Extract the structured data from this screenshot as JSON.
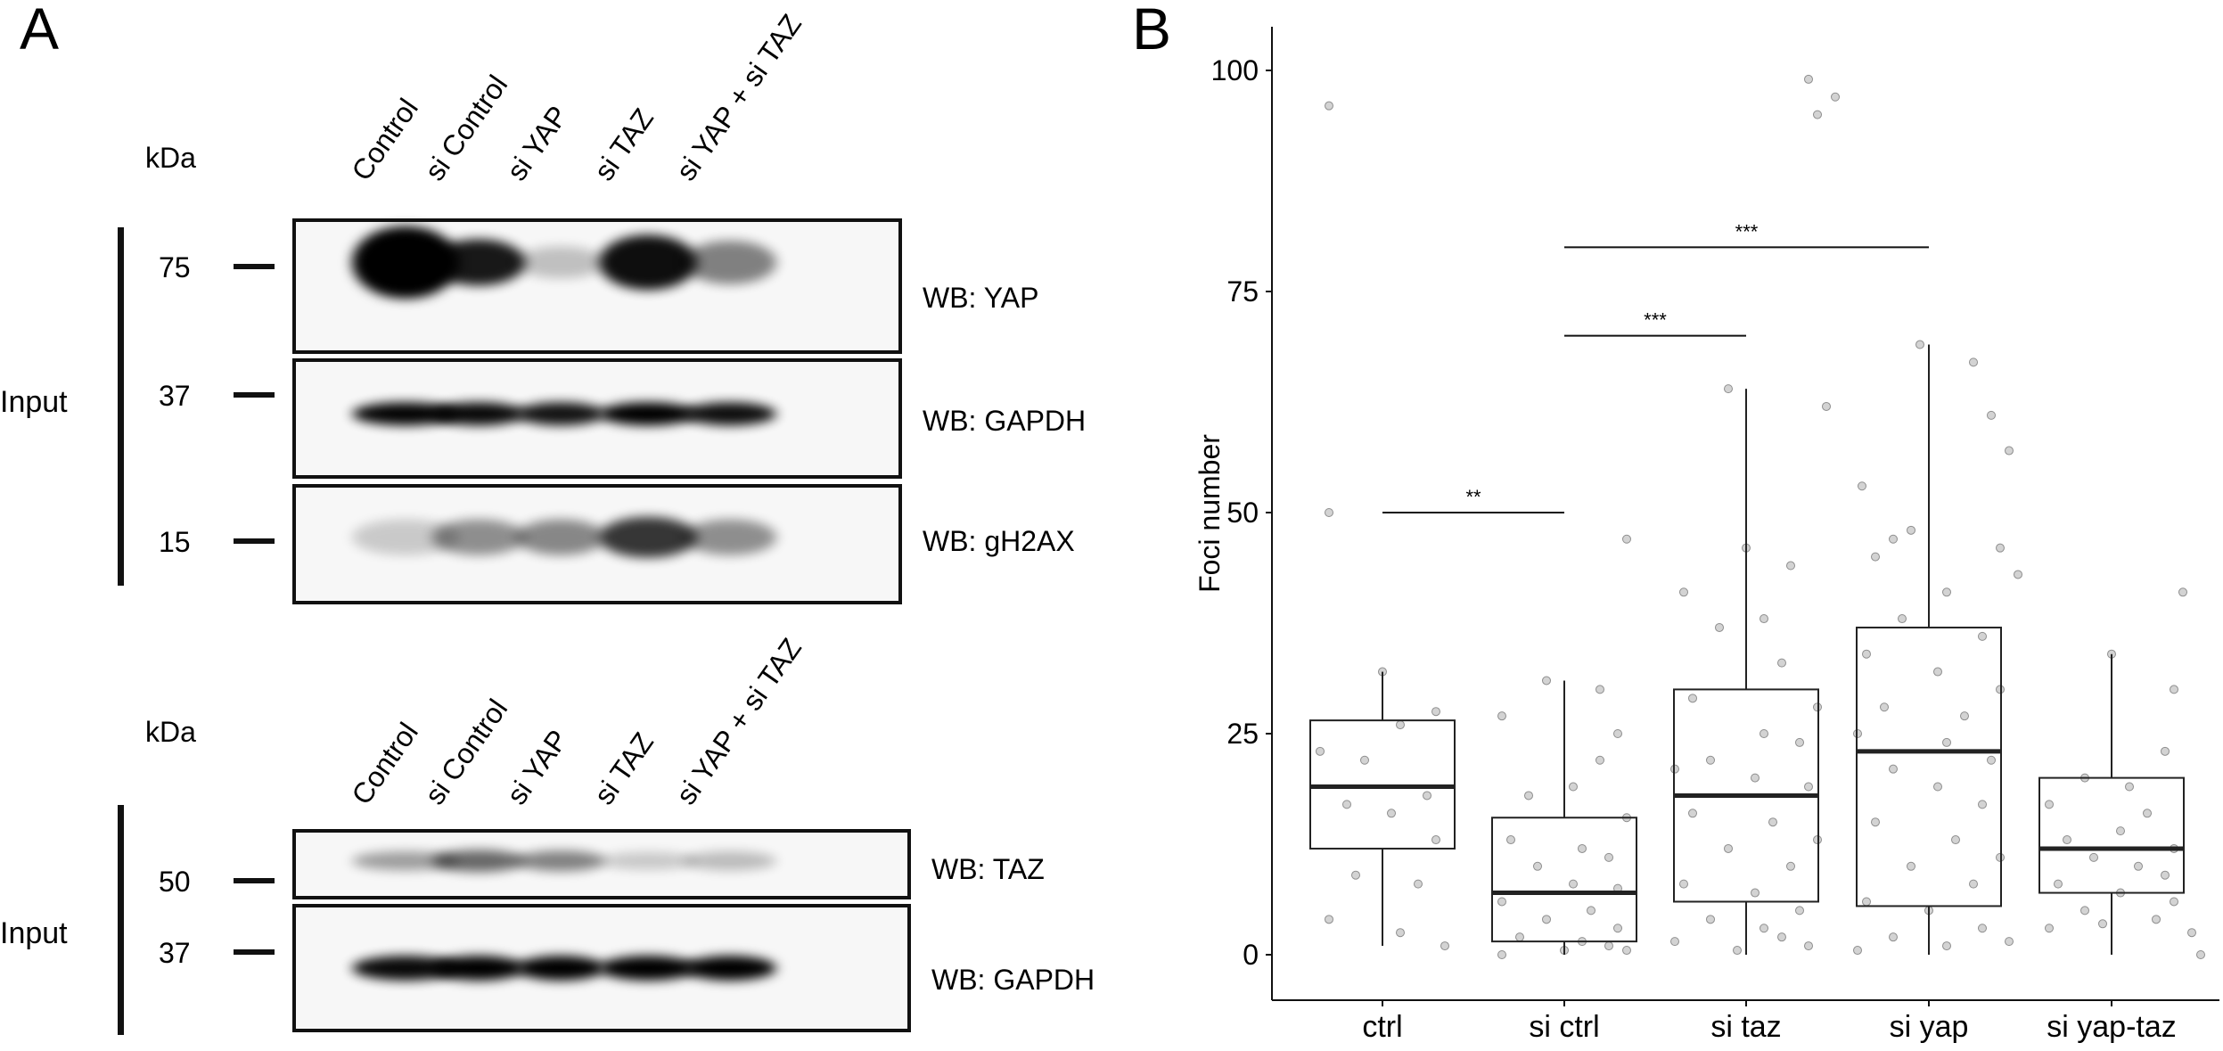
{
  "panel_a": {
    "label": "A",
    "kda_label": "kDa",
    "lanes": [
      "Control",
      "si Control",
      "si YAP",
      "si TAZ",
      "si YAP + si TAZ"
    ],
    "top_group": {
      "side_label": "Input",
      "blots": [
        {
          "wb_label": "WB: YAP",
          "marker": "75",
          "band_intensity": [
            0.97,
            0.78,
            0.1,
            0.82,
            0.36
          ],
          "band_spread": [
            0.5,
            0.32,
            0.22,
            0.38,
            0.3
          ]
        },
        {
          "wb_label": "WB: GAPDH",
          "marker": "37",
          "band_intensity": [
            0.86,
            0.84,
            0.8,
            0.88,
            0.82
          ],
          "band_spread": [
            0.18,
            0.18,
            0.18,
            0.18,
            0.18
          ]
        },
        {
          "wb_label": "WB: gH2AX",
          "marker": "15",
          "band_intensity": [
            0.06,
            0.3,
            0.33,
            0.66,
            0.3
          ],
          "band_spread": [
            0.28,
            0.28,
            0.28,
            0.32,
            0.28
          ]
        }
      ]
    },
    "bottom_group": {
      "side_label": "Input",
      "blots": [
        {
          "wb_label": "WB: TAZ",
          "marker": "50",
          "band_intensity": [
            0.24,
            0.46,
            0.36,
            0.07,
            0.12
          ],
          "band_spread": [
            0.26,
            0.3,
            0.28,
            0.24,
            0.26
          ]
        },
        {
          "wb_label": "WB: GAPDH",
          "marker": "37",
          "band_intensity": [
            0.84,
            0.88,
            0.92,
            0.9,
            0.92
          ],
          "band_spread": [
            0.18,
            0.18,
            0.18,
            0.18,
            0.18
          ]
        }
      ]
    }
  },
  "chart_data": {
    "panel_label": "B",
    "type": "boxplot",
    "title": "",
    "xlabel": "",
    "ylabel": "Foci number",
    "ylim": [
      -5,
      105
    ],
    "yticks": [
      0,
      25,
      50,
      75,
      100
    ],
    "grid": false,
    "categories": [
      "ctrl",
      "si ctrl",
      "si taz",
      "si yap",
      "si yap-taz"
    ],
    "boxes": [
      {
        "category": "ctrl",
        "whisker_low": 1,
        "q1": 12,
        "median": 19,
        "q3": 26.5,
        "whisker_high": 32
      },
      {
        "category": "si ctrl",
        "whisker_low": 0,
        "q1": 1.5,
        "median": 7,
        "q3": 15.5,
        "whisker_high": 31
      },
      {
        "category": "si taz",
        "whisker_low": 0,
        "q1": 6,
        "median": 18,
        "q3": 30,
        "whisker_high": 64
      },
      {
        "category": "si yap",
        "whisker_low": 0,
        "q1": 5.5,
        "median": 23,
        "q3": 37,
        "whisker_high": 69
      },
      {
        "category": "si yap-taz",
        "whisker_low": 0,
        "q1": 7,
        "median": 12,
        "q3": 20,
        "whisker_high": 34
      }
    ],
    "points": [
      [
        [
          -0.3,
          96
        ],
        [
          -0.3,
          50
        ],
        [
          0.0,
          32
        ],
        [
          -0.35,
          23
        ],
        [
          0.1,
          26
        ],
        [
          0.3,
          27.5
        ],
        [
          -0.1,
          22
        ],
        [
          0.25,
          18
        ],
        [
          -0.2,
          17
        ],
        [
          0.05,
          16
        ],
        [
          0.3,
          13
        ],
        [
          -0.15,
          9
        ],
        [
          0.2,
          8
        ],
        [
          -0.3,
          4
        ],
        [
          0.1,
          2.5
        ],
        [
          0.35,
          1
        ]
      ],
      [
        [
          -0.1,
          31
        ],
        [
          0.2,
          30
        ],
        [
          0.35,
          47
        ],
        [
          -0.35,
          27
        ],
        [
          0.2,
          22
        ],
        [
          0.3,
          25
        ],
        [
          -0.2,
          18
        ],
        [
          0.05,
          19
        ],
        [
          0.35,
          15.5
        ],
        [
          -0.3,
          13
        ],
        [
          0.1,
          12
        ],
        [
          0.25,
          11
        ],
        [
          -0.15,
          10
        ],
        [
          0.05,
          8
        ],
        [
          0.3,
          7.5
        ],
        [
          -0.35,
          6
        ],
        [
          0.15,
          5
        ],
        [
          -0.1,
          4
        ],
        [
          0.3,
          3
        ],
        [
          -0.25,
          2
        ],
        [
          0.1,
          1.5
        ],
        [
          0.35,
          0.5
        ],
        [
          -0.35,
          0
        ],
        [
          0.0,
          0.5
        ],
        [
          0.25,
          1
        ]
      ],
      [
        [
          0.35,
          99
        ],
        [
          0.4,
          95
        ],
        [
          0.5,
          97
        ],
        [
          -0.1,
          64
        ],
        [
          0.45,
          62
        ],
        [
          0.65,
          53
        ],
        [
          0.0,
          46
        ],
        [
          -0.35,
          41
        ],
        [
          0.25,
          44
        ],
        [
          0.1,
          38
        ],
        [
          -0.15,
          37
        ],
        [
          0.2,
          33
        ],
        [
          -0.3,
          29
        ],
        [
          0.4,
          28
        ],
        [
          -0.4,
          21
        ],
        [
          0.1,
          25
        ],
        [
          0.3,
          24
        ],
        [
          -0.2,
          22
        ],
        [
          0.05,
          20
        ],
        [
          0.35,
          19
        ],
        [
          -0.3,
          16
        ],
        [
          0.15,
          15
        ],
        [
          0.4,
          13
        ],
        [
          -0.1,
          12
        ],
        [
          0.25,
          10
        ],
        [
          -0.35,
          8
        ],
        [
          0.05,
          7
        ],
        [
          0.3,
          5
        ],
        [
          -0.2,
          4
        ],
        [
          0.1,
          3
        ],
        [
          -0.4,
          1.5
        ],
        [
          0.35,
          1
        ],
        [
          -0.05,
          0.5
        ],
        [
          0.2,
          2
        ]
      ],
      [
        [
          -0.05,
          69
        ],
        [
          0.25,
          67
        ],
        [
          0.35,
          61
        ],
        [
          0.45,
          57
        ],
        [
          -0.1,
          48
        ],
        [
          -0.2,
          47
        ],
        [
          0.4,
          46
        ],
        [
          -0.3,
          45
        ],
        [
          0.5,
          43
        ],
        [
          0.1,
          41
        ],
        [
          -0.15,
          38
        ],
        [
          0.3,
          36
        ],
        [
          -0.35,
          34
        ],
        [
          0.05,
          32
        ],
        [
          0.4,
          30
        ],
        [
          -0.25,
          28
        ],
        [
          0.2,
          27
        ],
        [
          -0.4,
          25
        ],
        [
          0.1,
          24
        ],
        [
          0.35,
          22
        ],
        [
          -0.2,
          21
        ],
        [
          0.05,
          19
        ],
        [
          0.3,
          17
        ],
        [
          -0.3,
          15
        ],
        [
          0.15,
          13
        ],
        [
          0.4,
          11
        ],
        [
          -0.1,
          10
        ],
        [
          0.25,
          8
        ],
        [
          -0.35,
          6
        ],
        [
          0.0,
          5
        ],
        [
          0.3,
          3
        ],
        [
          -0.2,
          2
        ],
        [
          0.1,
          1
        ],
        [
          0.45,
          1.5
        ],
        [
          -0.4,
          0.5
        ]
      ],
      [
        [
          0.0,
          34
        ],
        [
          0.4,
          41
        ],
        [
          0.35,
          30
        ],
        [
          -0.15,
          20
        ],
        [
          0.1,
          19
        ],
        [
          0.3,
          23
        ],
        [
          -0.35,
          17
        ],
        [
          0.2,
          16
        ],
        [
          0.05,
          14
        ],
        [
          -0.25,
          13
        ],
        [
          0.35,
          12
        ],
        [
          -0.1,
          11
        ],
        [
          0.15,
          10
        ],
        [
          0.3,
          9
        ],
        [
          -0.3,
          8
        ],
        [
          0.05,
          7
        ],
        [
          0.35,
          6
        ],
        [
          -0.15,
          5
        ],
        [
          0.25,
          4
        ],
        [
          -0.35,
          3
        ],
        [
          0.45,
          2.5
        ],
        [
          0.5,
          0
        ],
        [
          -0.05,
          3.5
        ]
      ]
    ],
    "significance": [
      {
        "from": "ctrl",
        "to": "si ctrl",
        "y": 50,
        "label": "**"
      },
      {
        "from": "si ctrl",
        "to": "si taz",
        "y": 70,
        "label": "***"
      },
      {
        "from": "si ctrl",
        "to": "si yap",
        "y": 80,
        "label": "***"
      }
    ]
  }
}
